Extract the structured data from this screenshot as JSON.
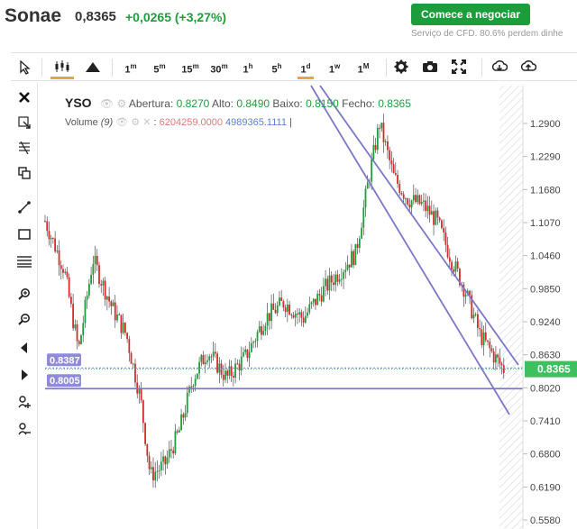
{
  "header": {
    "ticker": "Sonae",
    "price": "0,8365",
    "change": "+0,0265 (+3,27%)",
    "cta_label": "Comece a negociar",
    "cfd_note": "Serviço de CFD. 80.6% perdem dinhe"
  },
  "toolbar": {
    "pointer": "pointer-icon",
    "candles": "candles-icon",
    "area": "area-chart-icon",
    "timeframes": [
      {
        "num": "1",
        "unit": "m"
      },
      {
        "num": "5",
        "unit": "m"
      },
      {
        "num": "15",
        "unit": "m"
      },
      {
        "num": "30",
        "unit": "m"
      },
      {
        "num": "1",
        "unit": "h"
      },
      {
        "num": "5",
        "unit": "h"
      },
      {
        "num": "1",
        "unit": "d"
      },
      {
        "num": "1",
        "unit": "w"
      },
      {
        "num": "1",
        "unit": "M"
      }
    ],
    "active_timeframe_index": 6,
    "tools": [
      "settings-icon",
      "camera-icon",
      "fullscreen-icon",
      "download-icon",
      "upload-icon"
    ]
  },
  "rail": [
    "close-icon",
    "crosshair-icon",
    "fib-icon",
    "clone-icon",
    "trendline-icon",
    "rectangle-icon",
    "hlines-icon",
    "zoom-in-icon",
    "zoom-out-icon",
    "back-icon",
    "forward-icon",
    "measure-icon",
    "magnet-icon"
  ],
  "legend": {
    "symbol": "YSO",
    "open_label": "Abertura:",
    "open": "0.8270",
    "high_label": "Alto:",
    "high": "0.8490",
    "low_label": "Baixo:",
    "low": "0.8150",
    "close_label": "Fecho:",
    "close": "0.8365",
    "volume_label": "Volume",
    "volume_period": "(9)",
    "volume_value1": "6204259.0000",
    "volume_value2": "4989365.1111",
    "volume_sep": "|"
  },
  "colors": {
    "up": "#1e9e3b",
    "down": "#d62b2b",
    "channel": "#7b78c9",
    "current_price_bg": "#3cc15e",
    "level_tag_bg": "#8f8bd9"
  },
  "chart_data": {
    "type": "candlestick",
    "y_ticks": [
      "1.2900",
      "1.2290",
      "1.1680",
      "1.1070",
      "1.0460",
      "0.9850",
      "0.9240",
      "0.8630",
      "0.8020",
      "0.7410",
      "0.6800",
      "0.6190",
      "0.5580"
    ],
    "ylim": [
      0.558,
      1.29
    ],
    "current_price": "0.8365",
    "levels": [
      {
        "label": "0.8387",
        "value": 0.8387
      },
      {
        "label": "0.8005",
        "value": 0.8005
      }
    ],
    "approx_path": [
      [
        0,
        1.11
      ],
      [
        4,
        1.02
      ],
      [
        7,
        0.87
      ],
      [
        10,
        1.04
      ],
      [
        14,
        0.95
      ],
      [
        17,
        0.9
      ],
      [
        20,
        0.78
      ],
      [
        22,
        0.64
      ],
      [
        25,
        0.66
      ],
      [
        28,
        0.72
      ],
      [
        31,
        0.82
      ],
      [
        34,
        0.87
      ],
      [
        38,
        0.82
      ],
      [
        42,
        0.86
      ],
      [
        46,
        0.93
      ],
      [
        50,
        0.96
      ],
      [
        54,
        0.93
      ],
      [
        58,
        0.98
      ],
      [
        62,
        1.02
      ],
      [
        65,
        1.05
      ],
      [
        68,
        1.2
      ],
      [
        70,
        1.29
      ],
      [
        73,
        1.19
      ],
      [
        76,
        1.15
      ],
      [
        79,
        1.14
      ],
      [
        82,
        1.11
      ],
      [
        85,
        1.04
      ],
      [
        88,
        0.98
      ],
      [
        91,
        0.9
      ],
      [
        94,
        0.86
      ],
      [
        96,
        0.8365
      ]
    ]
  }
}
